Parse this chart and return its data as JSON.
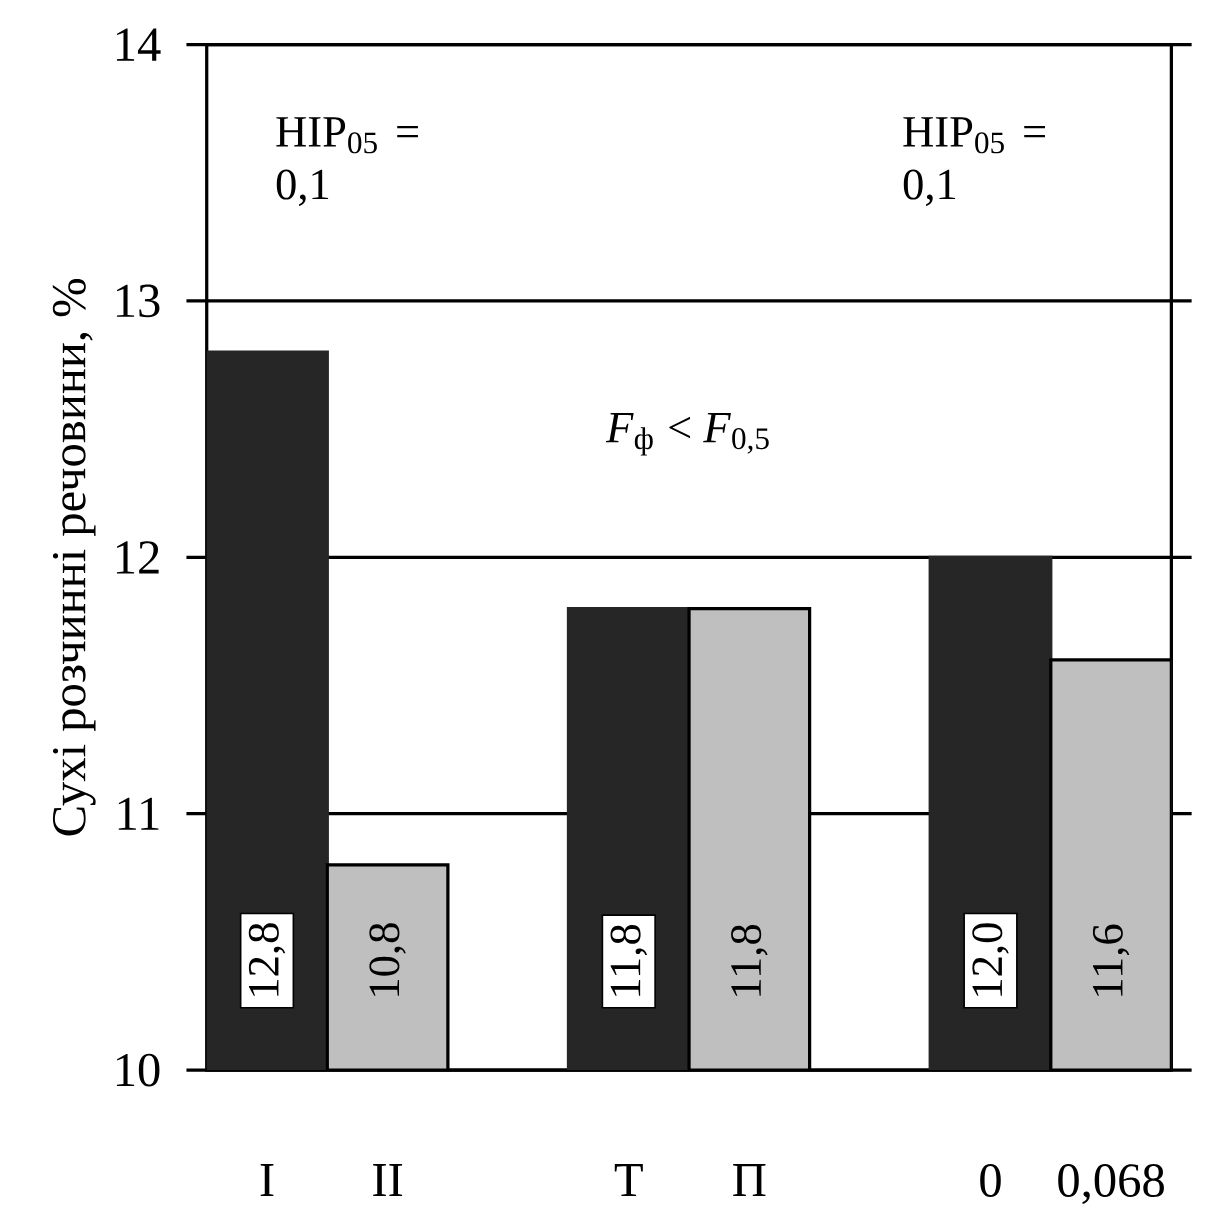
{
  "chart_data": {
    "type": "bar",
    "ylabel": "Сухі розчинні речовини, %",
    "categories": [
      "I",
      "II",
      null,
      "Т",
      "П",
      null,
      "0",
      "0,068"
    ],
    "values": [
      12.8,
      10.8,
      null,
      11.8,
      11.8,
      null,
      12.0,
      11.6
    ],
    "colors": [
      "#262626",
      "#bfbfbf",
      null,
      "#262626",
      "#bfbfbf",
      null,
      "#262626",
      "#bfbfbf"
    ],
    "value_labels": [
      "12,8",
      "10,8",
      null,
      "11,8",
      "11,8",
      null,
      "12,0",
      "11,6"
    ],
    "ylim": [
      10,
      14
    ],
    "yticks": [
      10,
      11,
      12,
      13,
      14
    ],
    "grid": "y",
    "annotations": [
      "НІР$_{05}$ = 0,1",
      "НІР$_{05}$ = 0,1",
      "*F*$_{ф}$ < *F*$_{0,5}$"
    ]
  }
}
